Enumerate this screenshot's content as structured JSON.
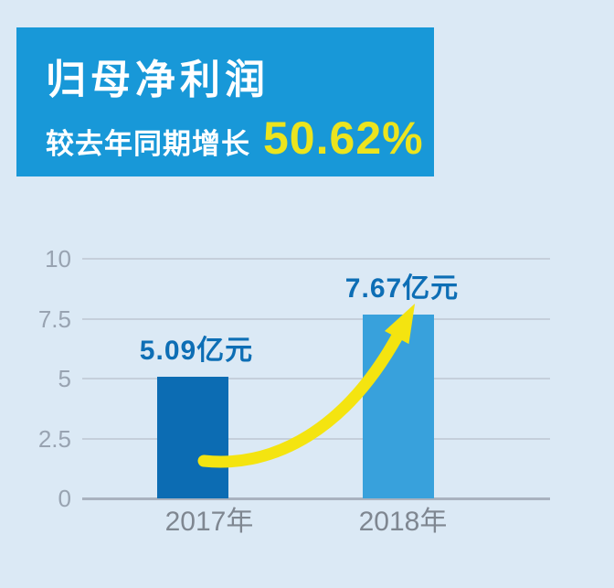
{
  "header": {
    "title": "归母净利润",
    "subtitle_prefix": "较去年同期增长",
    "growth_value": "50.62%"
  },
  "chart_data": {
    "type": "bar",
    "title": "归母净利润（亿元）",
    "categories": [
      "2017年",
      "2018年"
    ],
    "values": [
      5.09,
      7.67
    ],
    "value_labels": [
      "5.09亿元",
      "7.67亿元"
    ],
    "unit": "亿元",
    "ylim": [
      0,
      10
    ],
    "yticks": [
      0,
      2.5,
      5,
      7.5,
      10
    ],
    "ytick_labels": [
      "0",
      "2.5",
      "5",
      "7.5",
      "10"
    ],
    "grid": true,
    "legend": false,
    "bar_colors": [
      "#0c6cb3",
      "#38a1dc"
    ],
    "annotation": "黄色增长箭头：从2017年柱指向2018年柱顶部"
  },
  "colors": {
    "background": "#dbe9f5",
    "header_bg": "#1898d8",
    "header_text": "#ffffff",
    "growth_text": "#ece41e",
    "grid_line": "#c5cfdb",
    "zero_line": "#a9b2bf",
    "ytick_label": "#98a3b1",
    "xtick_label": "#7f8791",
    "value_label": "#0d6eb5",
    "arrow": "#f4e410"
  }
}
